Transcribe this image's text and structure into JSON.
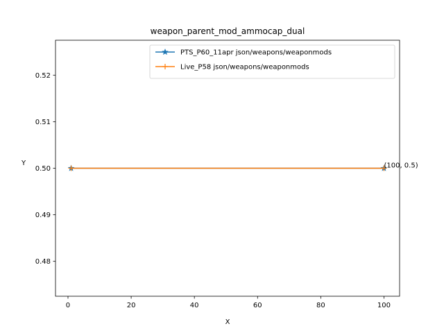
{
  "chart_data": {
    "type": "line",
    "title": "weapon_parent_mod_ammocap_dual",
    "xlabel": "X",
    "ylabel": "Y",
    "xlim": [
      -3.95,
      104.95
    ],
    "ylim": [
      0.4725,
      0.5275
    ],
    "xticks": [
      0,
      20,
      40,
      60,
      80,
      100
    ],
    "xtick_labels": [
      "0",
      "20",
      "40",
      "60",
      "80",
      "100"
    ],
    "yticks": [
      0.48,
      0.49,
      0.5,
      0.51,
      0.52
    ],
    "ytick_labels": [
      "0.48",
      "0.49",
      "0.50",
      "0.51",
      "0.52"
    ],
    "grid": false,
    "legend_position": "top-right",
    "series": [
      {
        "name": "PTS_P60_11apr json/weapons/weaponmods",
        "color": "#1f77b4",
        "marker": "star",
        "x": [
          1,
          100
        ],
        "y": [
          0.5,
          0.5
        ]
      },
      {
        "name": "Live_P58 json/weapons/weaponmods",
        "color": "#ff7f0e",
        "marker": "plus",
        "x": [
          1,
          100
        ],
        "y": [
          0.5,
          0.5
        ]
      }
    ],
    "annotations": [
      {
        "text": "(100, 0.5)",
        "x": 100,
        "y": 0.5
      }
    ]
  }
}
